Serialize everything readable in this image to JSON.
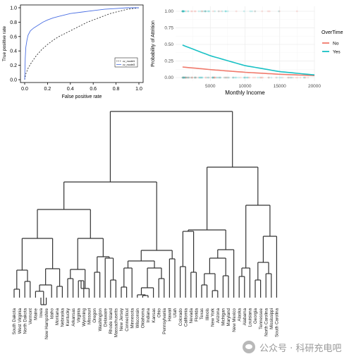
{
  "colors": {
    "roc_model1": "#333333",
    "roc_model2": "#4a6fe3",
    "overtime_no": "#f07a6c",
    "overtime_yes": "#19c1c5",
    "dendro": "#333333",
    "panel_bg": "#ffffff",
    "grid": "#ebebeb"
  },
  "watermark": {
    "text": "公众号 · 科研充电吧"
  },
  "chart_data": [
    {
      "type": "line",
      "xlabel": "False positive rate",
      "ylabel": "True positive rate",
      "xlim": [
        0,
        1
      ],
      "ylim": [
        0,
        1
      ],
      "xticks": [
        "0.0",
        "0.2",
        "0.4",
        "0.6",
        "0.8",
        "1.0"
      ],
      "yticks": [
        "0.0",
        "0.2",
        "0.4",
        "0.6",
        "0.8",
        "1.0"
      ],
      "legend": [
        "cv_model1",
        "cv_model3"
      ],
      "legend_position": "bottom-right",
      "series": [
        {
          "name": "cv_model1",
          "style": "dashed",
          "x": [
            0,
            0.01,
            0.03,
            0.06,
            0.1,
            0.15,
            0.2,
            0.25,
            0.3,
            0.35,
            0.4,
            0.45,
            0.5,
            0.55,
            0.6,
            0.65,
            0.7,
            0.75,
            0.8,
            0.85,
            0.9,
            0.95,
            1.0
          ],
          "y": [
            0,
            0.08,
            0.16,
            0.24,
            0.33,
            0.42,
            0.49,
            0.55,
            0.6,
            0.64,
            0.68,
            0.72,
            0.76,
            0.8,
            0.83,
            0.86,
            0.89,
            0.92,
            0.94,
            0.96,
            0.98,
            0.99,
            1.0
          ]
        },
        {
          "name": "cv_model3",
          "style": "solid",
          "x": [
            0,
            0.005,
            0.01,
            0.02,
            0.03,
            0.05,
            0.08,
            0.12,
            0.16,
            0.2,
            0.25,
            0.3,
            0.35,
            0.4,
            0.5,
            0.6,
            0.7,
            0.8,
            0.9,
            1.0
          ],
          "y": [
            0,
            0.3,
            0.45,
            0.55,
            0.62,
            0.68,
            0.72,
            0.76,
            0.8,
            0.83,
            0.86,
            0.88,
            0.9,
            0.92,
            0.94,
            0.96,
            0.98,
            0.99,
            1.0,
            1.0
          ]
        }
      ]
    },
    {
      "type": "line",
      "xlabel": "Monthly Income",
      "ylabel": "Probability of Attrition",
      "xlim": [
        0,
        20000
      ],
      "ylim": [
        0,
        1
      ],
      "xticks": [
        "5000",
        "10000",
        "15000",
        "20000"
      ],
      "yticks": [
        "0.00",
        "0.25",
        "0.50",
        "0.75",
        "1.00"
      ],
      "legend_title": "OverTime",
      "legend": [
        "No",
        "Yes"
      ],
      "legend_position": "right",
      "grid": true,
      "series": [
        {
          "name": "No",
          "x": [
            1000,
            5000,
            10000,
            15000,
            20000
          ],
          "y": [
            0.16,
            0.12,
            0.08,
            0.05,
            0.03
          ]
        },
        {
          "name": "Yes",
          "x": [
            1000,
            5000,
            10000,
            15000,
            20000
          ],
          "y": [
            0.49,
            0.33,
            0.18,
            0.09,
            0.04
          ]
        }
      ]
    },
    {
      "type": "dendrogram",
      "leaves": [
        "South Dakota",
        "West Virginia",
        "North Dakota",
        "Vermont",
        "Maine",
        "Iowa",
        "New Hampshire",
        "Idaho",
        "Montana",
        "Nebraska",
        "Kentucky",
        "Arkansas",
        "Virginia",
        "Wyoming",
        "Missouri",
        "Oregon",
        "Washington",
        "Delaware",
        "Rhode Island",
        "Massachusetts",
        "New Jersey",
        "Connecticut",
        "Minnesota",
        "Wisconsin",
        "Oklahoma",
        "Indiana",
        "Kansas",
        "Ohio",
        "Pennsylvania",
        "Hawaii",
        "Utah",
        "Colorado",
        "California",
        "Nevada",
        "Florida",
        "Texas",
        "Illinois",
        "New York",
        "Arizona",
        "Michigan",
        "Maryland",
        "New Mexico",
        "Alaska",
        "Alabama",
        "Louisiana",
        "Georgia",
        "Tennessee",
        "North Carolina",
        "Mississippi",
        "South Carolina"
      ]
    }
  ]
}
